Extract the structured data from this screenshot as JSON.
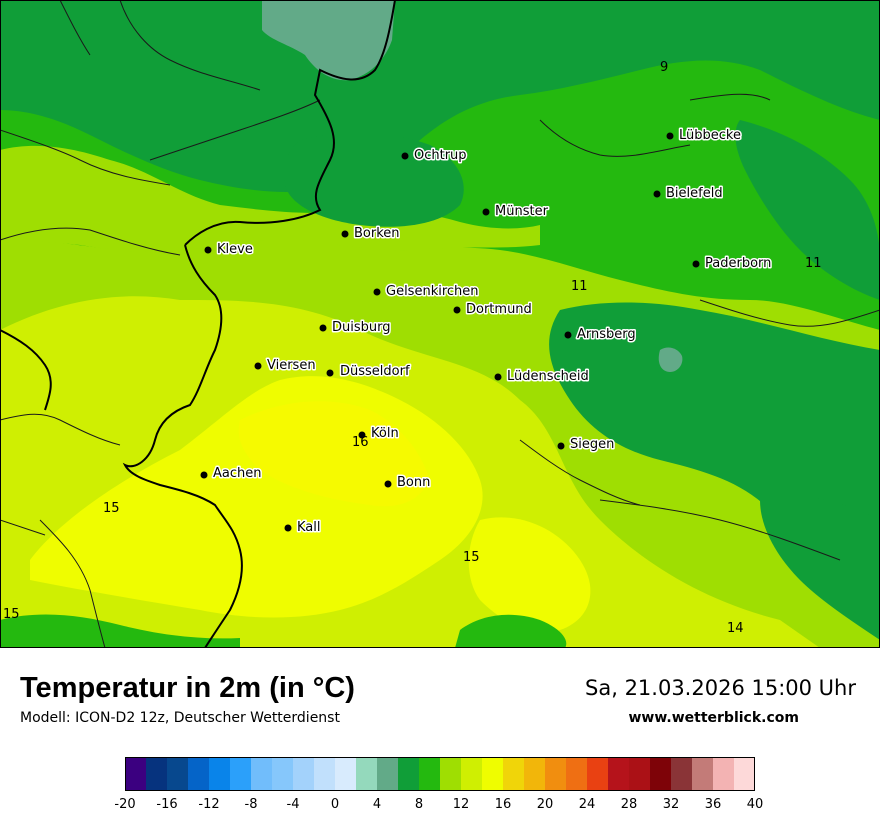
{
  "map": {
    "cities": [
      {
        "name": "Lübbecke"
      },
      {
        "name": "Ochtrup"
      },
      {
        "name": "Bielefeld"
      },
      {
        "name": "Münster"
      },
      {
        "name": "Borken"
      },
      {
        "name": "Kleve"
      },
      {
        "name": "Paderborn"
      },
      {
        "name": "Gelsenkirchen"
      },
      {
        "name": "Dortmund"
      },
      {
        "name": "Duisburg"
      },
      {
        "name": "Arnsberg"
      },
      {
        "name": "Viersen"
      },
      {
        "name": "Düsseldorf"
      },
      {
        "name": "Lüdenscheid"
      },
      {
        "name": "Köln"
      },
      {
        "name": "Siegen"
      },
      {
        "name": "Aachen"
      },
      {
        "name": "Bonn"
      },
      {
        "name": "Kall"
      }
    ],
    "value_labels": [
      "9",
      "11",
      "11",
      "16",
      "15",
      "15",
      "15",
      "14"
    ]
  },
  "footer": {
    "title": "Temperatur in 2m (in °C)",
    "model": "Modell: ICON-D2 12z, Deutscher Wetterdienst",
    "datetime": "Sa, 21.03.2026 15:00 Uhr",
    "website": "www.wetterblick.com"
  },
  "legend": {
    "min": -20,
    "max": 40,
    "step": 2,
    "tick_labels": [
      "-20",
      "-16",
      "-12",
      "-8",
      "-4",
      "0",
      "4",
      "8",
      "12",
      "16",
      "20",
      "24",
      "28",
      "32",
      "36",
      "40"
    ],
    "colors": [
      "#3b0080",
      "#06337e",
      "#07488e",
      "#0564c8",
      "#0984ea",
      "#2ba0fa",
      "#71bdfb",
      "#86c7fb",
      "#a3d2fb",
      "#c1e0fc",
      "#d8ebfd",
      "#94d9bc",
      "#62aa88",
      "#109e38",
      "#24b90f",
      "#9fde02",
      "#cfef02",
      "#effd00",
      "#f0d509",
      "#f2b60a",
      "#f18e0f",
      "#ef6f13",
      "#e94112",
      "#b5131b",
      "#ab1116",
      "#7e0308",
      "#8a3437",
      "#c37b78",
      "#f3b3b3",
      "#fdd9d9"
    ]
  }
}
